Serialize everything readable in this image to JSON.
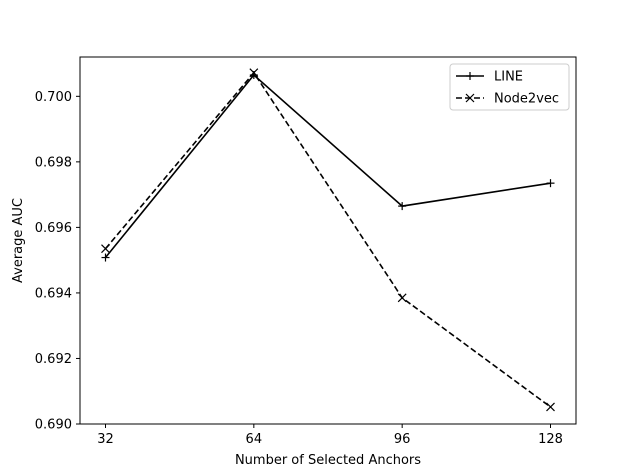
{
  "chart_data": {
    "type": "line",
    "x": [
      32,
      64,
      96,
      128
    ],
    "xticks": [
      32,
      64,
      96,
      128
    ],
    "xlabel": "Number of Selected Anchors",
    "ylabel": "Average AUC",
    "xlim": [
      26.5,
      133.5
    ],
    "ylim": [
      0.69,
      0.7012
    ],
    "yticks": [
      0.69,
      0.692,
      0.694,
      0.696,
      0.698,
      0.7
    ],
    "ytick_labels": [
      "0.690",
      "0.692",
      "0.694",
      "0.696",
      "0.698",
      "0.700"
    ],
    "grid": false,
    "legend": "top-right",
    "series": [
      {
        "name": "LINE",
        "values": [
          0.69508,
          0.70065,
          0.69665,
          0.69735
        ],
        "marker": "+",
        "line": "solid",
        "color": "#000000"
      },
      {
        "name": "Node2vec",
        "values": [
          0.69535,
          0.70072,
          0.69385,
          0.69052
        ],
        "marker": "x",
        "line": "dashed",
        "color": "#000000"
      }
    ]
  }
}
